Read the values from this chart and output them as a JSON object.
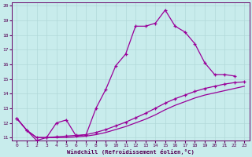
{
  "xlabel": "Windchill (Refroidissement éolien,°C)",
  "xlim": [
    -0.5,
    23.5
  ],
  "ylim": [
    10.8,
    20.2
  ],
  "yticks": [
    11,
    12,
    13,
    14,
    15,
    16,
    17,
    18,
    19,
    20
  ],
  "xticks": [
    0,
    1,
    2,
    3,
    4,
    5,
    6,
    7,
    8,
    9,
    10,
    11,
    12,
    13,
    14,
    15,
    16,
    17,
    18,
    19,
    20,
    21,
    22,
    23
  ],
  "background_color": "#c8ecec",
  "grid_color": "#b0d8d8",
  "line_color": "#990099",
  "line1_x": [
    0,
    1,
    2,
    3,
    4,
    5,
    6,
    7,
    8,
    9,
    10,
    11,
    12,
    13,
    14,
    15,
    16,
    17,
    18,
    19,
    20,
    21,
    22
  ],
  "line1_y": [
    12.3,
    11.5,
    10.8,
    11.0,
    12.0,
    12.2,
    11.1,
    11.2,
    13.0,
    14.3,
    15.9,
    16.7,
    18.6,
    18.6,
    18.8,
    19.7,
    18.6,
    18.2,
    17.4,
    16.1,
    15.3,
    15.3,
    15.2
  ],
  "line2_x": [
    0,
    1,
    2,
    3,
    4,
    5,
    6,
    7,
    8,
    9,
    10,
    11,
    12,
    13,
    14,
    15,
    16,
    17,
    18,
    19,
    20,
    21,
    22,
    23
  ],
  "line2_y": [
    12.3,
    11.5,
    11.0,
    11.0,
    11.05,
    11.1,
    11.15,
    11.2,
    11.35,
    11.55,
    11.8,
    12.05,
    12.35,
    12.65,
    13.0,
    13.35,
    13.65,
    13.9,
    14.15,
    14.35,
    14.5,
    14.65,
    14.75,
    14.8
  ],
  "line3_x": [
    0,
    1,
    2,
    3,
    4,
    5,
    6,
    7,
    8,
    9,
    10,
    11,
    12,
    13,
    14,
    15,
    16,
    17,
    18,
    19,
    20,
    21,
    22,
    23
  ],
  "line3_y": [
    12.3,
    11.5,
    11.0,
    11.0,
    11.0,
    11.0,
    11.05,
    11.1,
    11.2,
    11.35,
    11.55,
    11.75,
    12.0,
    12.25,
    12.55,
    12.9,
    13.2,
    13.45,
    13.7,
    13.9,
    14.05,
    14.2,
    14.35,
    14.5
  ]
}
